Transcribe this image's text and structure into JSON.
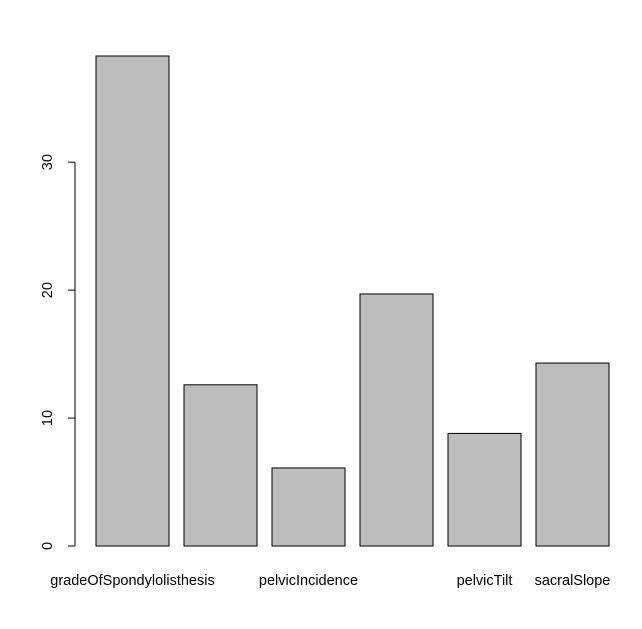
{
  "chart_data": {
    "type": "bar",
    "categories": [
      "gradeOfSpondylolisthesis",
      "",
      "pelvicIncidence",
      "",
      "pelvicTilt",
      "sacralSlope"
    ],
    "values": [
      38.3,
      12.6,
      6.1,
      19.7,
      8.8,
      14.3
    ],
    "title": "",
    "xlabel": "",
    "ylabel": "",
    "ylim": [
      0,
      38.3
    ],
    "yticks": [
      0,
      10,
      20,
      30
    ],
    "grid": false,
    "colors": {
      "bar_fill": "#bebebe",
      "bar_stroke": "#000000",
      "axis": "#000000"
    }
  }
}
